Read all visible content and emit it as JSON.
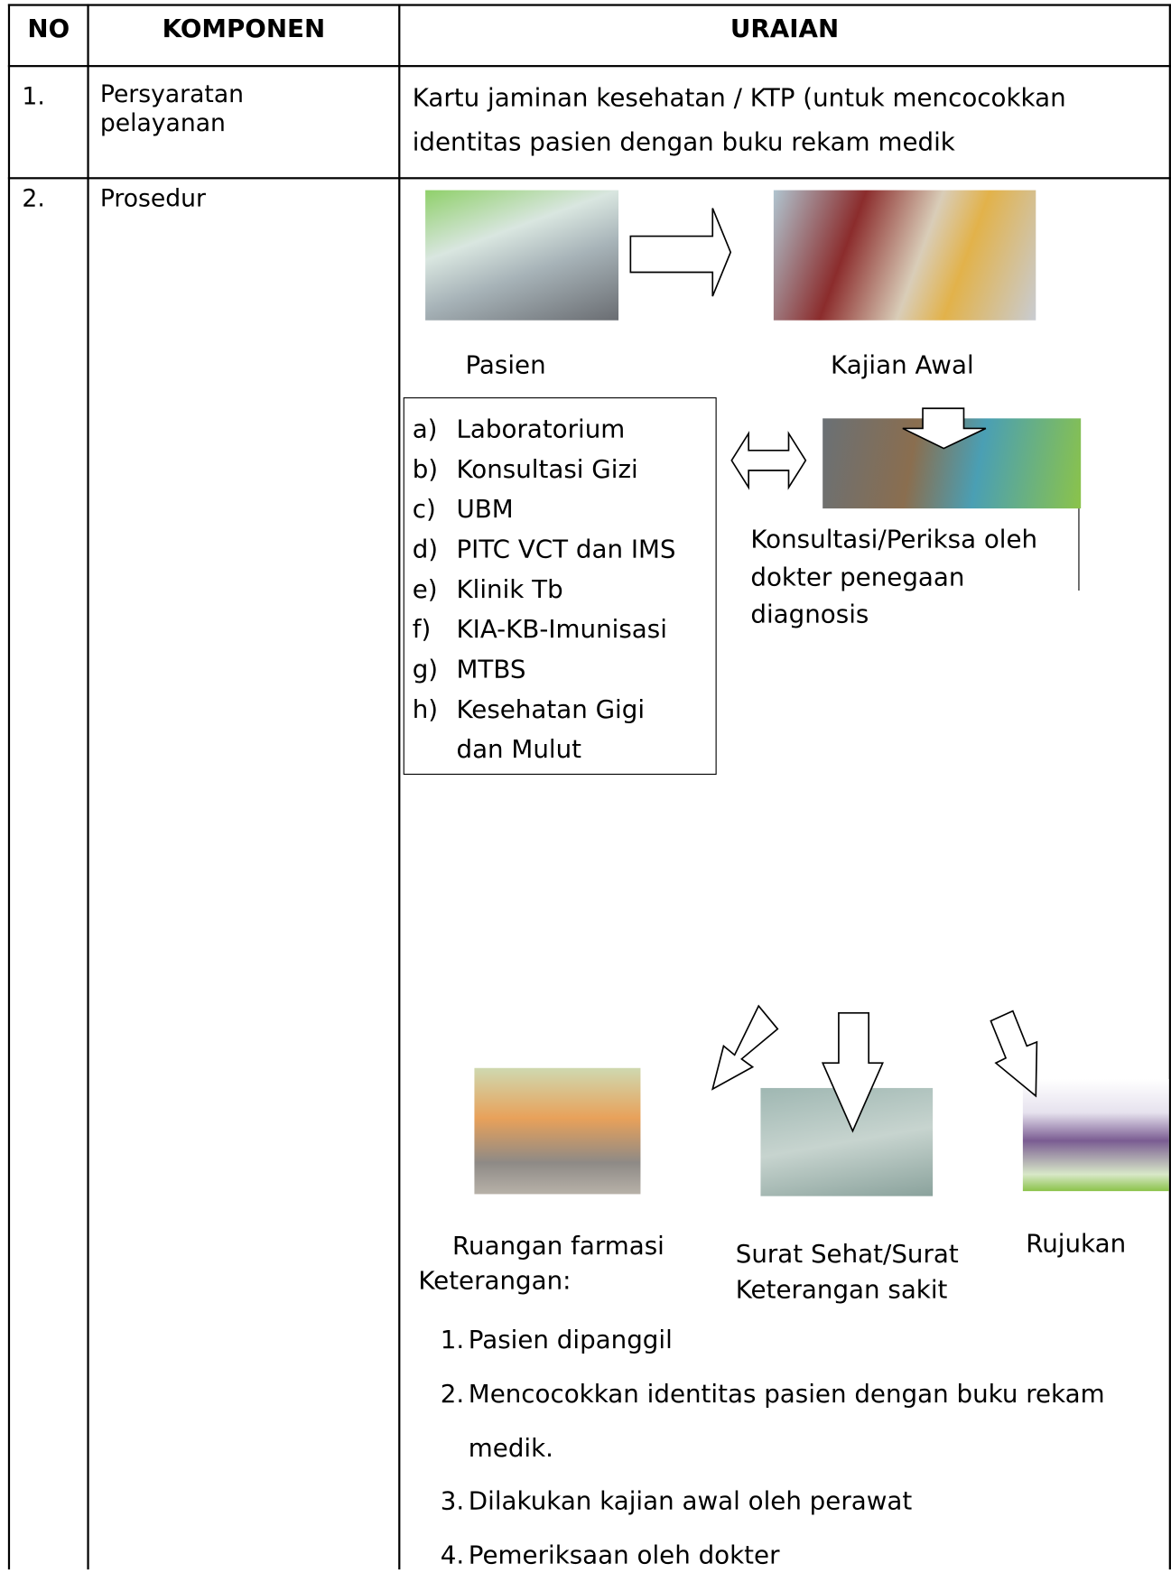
{
  "table": {
    "header": [
      "NO",
      "KOMPONEN",
      "URAIAN"
    ],
    "rows": [
      {
        "no": "1.",
        "komponen": "Persyaratan pelayanan",
        "uraian": "Kartu jaminan kesehatan / KTP (untuk mencocokkan identitas pasien dengan buku rekam medik"
      },
      {
        "no": "2.",
        "komponen": "Prosedur",
        "diagram": {
          "pasien": "Pasien",
          "kajian": "Kajian Awal",
          "units": [
            {
              "marker": "a)",
              "text": "Laboratorium"
            },
            {
              "marker": "b)",
              "text": "Konsultasi Gizi"
            },
            {
              "marker": "c)",
              "text": "UBM"
            },
            {
              "marker": "d)",
              "text": "PITC VCT dan IMS"
            },
            {
              "marker": "e)",
              "text": "Klinik Tb"
            },
            {
              "marker": "f)",
              "text": "KIA-KB-Imunisasi"
            },
            {
              "marker": "g)",
              "text": "MTBS"
            },
            {
              "marker": "h)",
              "text": "Kesehatan Gigi dan Mulut"
            }
          ],
          "konsultasi": "Konsultasi/Periksa oleh dokter penegaan diagnosis",
          "farmasi": "Ruangan farmasi",
          "surat": "Surat Sehat/Surat Keterangan sakit",
          "rujukan": "Rujukan"
        },
        "keterangan_title": "Keterangan:",
        "keterangan": [
          {
            "number": "1.",
            "text": "Pasien dipanggil"
          },
          {
            "number": "2.",
            "text": "Mencocokkan identitas pasien dengan buku rekam medik."
          },
          {
            "number": "3.",
            "text": "Dilakukan kajian awal oleh perawat"
          },
          {
            "number": "4.",
            "text": "Pemeriksaan oleh dokter"
          }
        ]
      }
    ]
  }
}
